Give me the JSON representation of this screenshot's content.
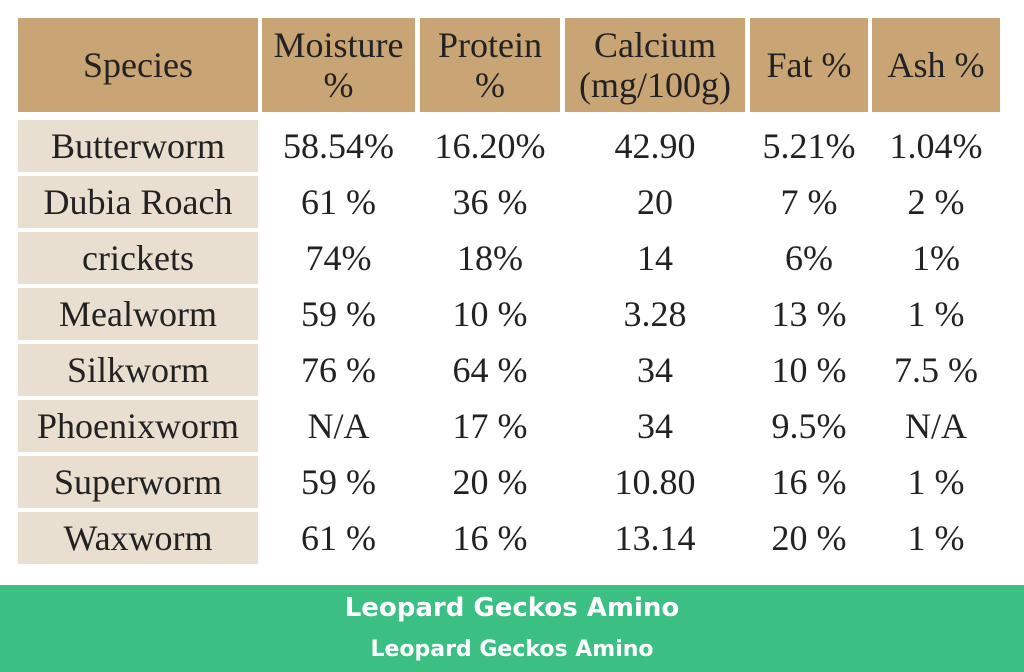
{
  "table": {
    "header": [
      [
        "Species"
      ],
      [
        "Moisture",
        "%"
      ],
      [
        "Protein",
        "%"
      ],
      [
        "Calcium",
        "(mg/100g)"
      ],
      [
        "Fat %"
      ],
      [
        "Ash %"
      ]
    ],
    "rows": [
      [
        "Butterworm",
        "58.54%",
        "16.20%",
        "42.90",
        "5.21%",
        "1.04%"
      ],
      [
        "Dubia Roach",
        "61 %",
        "36 %",
        "20",
        "7 %",
        "2 %"
      ],
      [
        "crickets",
        "74%",
        "18%",
        "14",
        "6%",
        "1%"
      ],
      [
        "Mealworm",
        "59 %",
        "10 %",
        "3.28",
        "13 %",
        "1 %"
      ],
      [
        "Silkworm",
        "76 %",
        "64 %",
        "34",
        "10 %",
        "7.5 %"
      ],
      [
        "Phoenixworm",
        "N/A",
        "17 %",
        "34",
        "9.5%",
        "N/A"
      ],
      [
        "Superworm",
        "59 %",
        "20 %",
        "10.80",
        "16 %",
        "1 %"
      ],
      [
        "Waxworm",
        "61 %",
        "16 %",
        "13.14",
        "20 %",
        "1 %"
      ]
    ]
  },
  "footer": {
    "title": "Leopard Geckos Amino",
    "subtitle": "Leopard Geckos Amino"
  }
}
